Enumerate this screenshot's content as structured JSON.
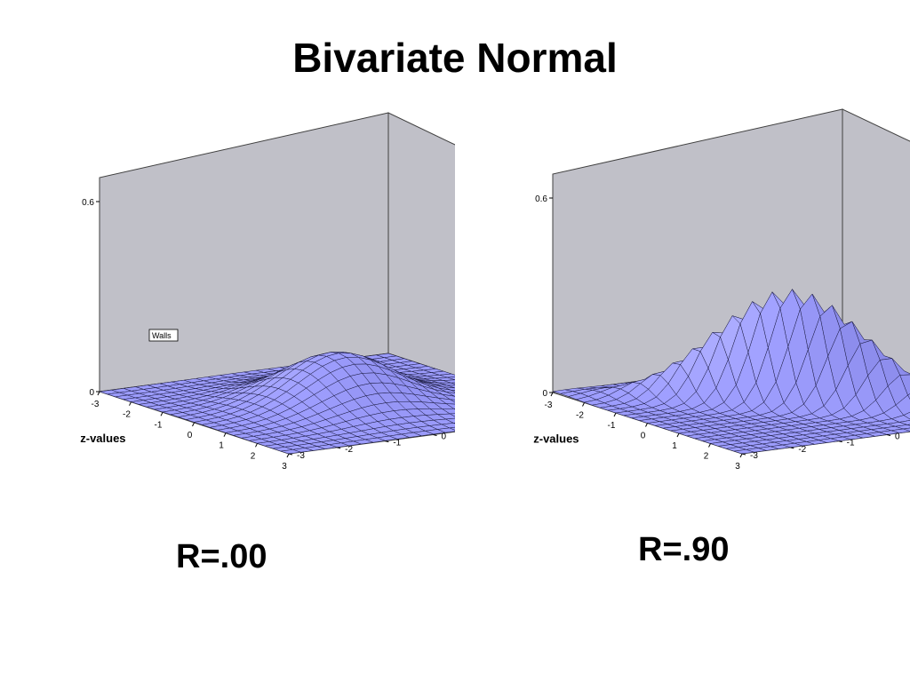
{
  "slide": {
    "title": "Bivariate Normal"
  },
  "colors": {
    "surface": "#9c9cfc",
    "mesh": "#1a1a40",
    "wall": "#c0c0c8",
    "wall_edge": "#404040",
    "floor": "#a8a8b0"
  },
  "chart_data": [
    {
      "type": "surface",
      "caption": "R=.00",
      "correlation": 0.0,
      "x_label": "z-values",
      "y_label": "z-values",
      "x_ticks": [
        "-3",
        "-2",
        "-1",
        "0",
        "1",
        "2",
        "3"
      ],
      "y_ticks": [
        "-3",
        "-2",
        "-1",
        "0",
        "1",
        "2",
        "3"
      ],
      "z_ticks": [
        "0",
        "0.6"
      ],
      "x_range": [
        -3,
        3
      ],
      "y_range": [
        -3,
        3
      ],
      "z_range": [
        0,
        0.6
      ],
      "tooltip": "Walls"
    },
    {
      "type": "surface",
      "caption": "R=.90",
      "correlation": 0.9,
      "x_label": "z-values",
      "y_label": "z-values",
      "x_ticks": [
        "-3",
        "-2",
        "-1",
        "0",
        "1",
        "2",
        "3"
      ],
      "y_ticks": [
        "-3",
        "-2",
        "-1",
        "0",
        "1",
        "2",
        "3"
      ],
      "z_ticks": [
        "0",
        "0.6"
      ],
      "x_range": [
        -3,
        3
      ],
      "y_range": [
        -3,
        3
      ],
      "z_range": [
        0,
        0.6
      ]
    }
  ]
}
